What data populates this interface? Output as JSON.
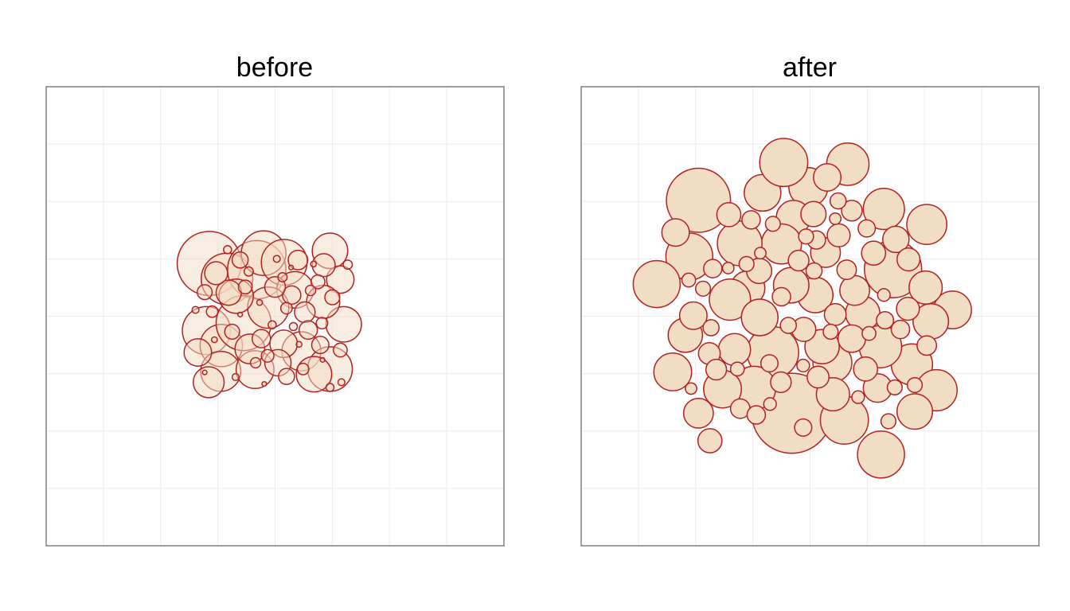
{
  "colors": {
    "circle_fill": "#f1dcc4",
    "circle_stroke": "#b22222",
    "grid": "#ebebeb",
    "frame": "#7f7f7f",
    "background": "#ffffff"
  },
  "chart_data": [
    {
      "type": "scatter",
      "title": "before",
      "xlabel": "",
      "ylabel": "",
      "xlim": [
        -40,
        40
      ],
      "ylim": [
        -40,
        40
      ],
      "grid": true,
      "legend": "none",
      "fill_opacity": 0.5,
      "circles": [
        [
          -11.5,
          9.2,
          5.6
        ],
        [
          -8.4,
          6.5,
          4.5
        ],
        [
          -3.2,
          8.1,
          5.1
        ],
        [
          -2.0,
          11.0,
          3.9
        ],
        [
          1.6,
          9.4,
          4.0
        ],
        [
          3.5,
          4.6,
          3.2
        ],
        [
          9.6,
          11.4,
          3.1
        ],
        [
          11.4,
          6.4,
          2.4
        ],
        [
          8.5,
          8.9,
          2.0
        ],
        [
          -12.0,
          -2.5,
          4.2
        ],
        [
          -9.4,
          -5.1,
          3.7
        ],
        [
          -5.5,
          -1.2,
          4.8
        ],
        [
          -1.2,
          1.5,
          3.6
        ],
        [
          -6.8,
          3.5,
          3.0
        ],
        [
          -9.5,
          -9.6,
          3.5
        ],
        [
          -11.6,
          -11.5,
          2.7
        ],
        [
          -3.5,
          -9.3,
          3.3
        ],
        [
          4.6,
          -6.1,
          3.4
        ],
        [
          9.6,
          -9.2,
          3.9
        ],
        [
          6.8,
          -10.1,
          3.1
        ],
        [
          12.0,
          -1.4,
          3.1
        ],
        [
          8.4,
          2.5,
          2.9
        ],
        [
          -4.4,
          -5.7,
          2.6
        ],
        [
          1.5,
          -4.8,
          2.4
        ],
        [
          -8.1,
          4.1,
          2.2
        ],
        [
          5.2,
          0.7,
          1.8
        ],
        [
          0.5,
          -8.1,
          2.3
        ],
        [
          -13.5,
          -6.3,
          2.4
        ],
        [
          2.9,
          3.7,
          1.6
        ],
        [
          -2.4,
          -3.9,
          1.6
        ],
        [
          7.9,
          -5.0,
          1.5
        ],
        [
          4.0,
          9.8,
          1.7
        ],
        [
          -10.3,
          7.5,
          2.0
        ],
        [
          10.0,
          3.3,
          1.3
        ],
        [
          -6.1,
          9.8,
          1.4
        ],
        [
          5.8,
          -2.4,
          1.6
        ],
        [
          0.0,
          5.1,
          1.8
        ],
        [
          -5.2,
          5.1,
          1.2
        ],
        [
          2.0,
          -10.5,
          1.4
        ],
        [
          -7.5,
          -2.7,
          1.3
        ],
        [
          7.5,
          6.0,
          1.2
        ],
        [
          -1.3,
          -6.9,
          1.1
        ],
        [
          11.4,
          -5.9,
          1.2
        ],
        [
          -12.3,
          4.2,
          1.3
        ],
        [
          4.9,
          -9.2,
          1.0
        ],
        [
          -3.4,
          -8.1,
          0.9
        ],
        [
          8.2,
          -1.2,
          1.0
        ],
        [
          2.0,
          1.4,
          1.0
        ],
        [
          -11.0,
          0.8,
          1.0
        ],
        [
          6.2,
          4.5,
          0.9
        ],
        [
          1.3,
          6.8,
          0.8
        ],
        [
          -4.6,
          7.8,
          0.8
        ],
        [
          12.7,
          9.0,
          0.8
        ],
        [
          3.2,
          -1.8,
          0.7
        ],
        [
          -0.5,
          -1.5,
          0.7
        ],
        [
          9.6,
          -12.4,
          0.7
        ],
        [
          -8.3,
          11.6,
          0.7
        ],
        [
          -6.9,
          -10.6,
          0.6
        ],
        [
          0.3,
          10.0,
          0.6
        ],
        [
          11.6,
          -11.5,
          0.6
        ],
        [
          -13.9,
          1.1,
          0.6
        ],
        [
          6.7,
          9.1,
          0.5
        ],
        [
          -2.7,
          2.4,
          0.5
        ],
        [
          4.2,
          -4.9,
          0.5
        ],
        [
          -10.6,
          -4.1,
          0.5
        ],
        [
          2.8,
          8.5,
          0.4
        ],
        [
          -1.9,
          -11.8,
          0.4
        ],
        [
          8.3,
          -7.6,
          0.4
        ],
        [
          -12.3,
          -9.8,
          0.4
        ],
        [
          -6.1,
          0.3,
          0.4
        ]
      ]
    },
    {
      "type": "scatter",
      "title": "after",
      "xlabel": "",
      "ylabel": "",
      "xlim": [
        -40,
        40
      ],
      "ylim": [
        -40,
        40
      ],
      "grid": true,
      "legend": "none",
      "fill_opacity": 1,
      "circles": [
        [
          -19.5,
          20.2,
          5.6
        ],
        [
          -3.2,
          -16.9,
          7.0
        ],
        [
          12.4,
          -24.1,
          4.1
        ],
        [
          -0.3,
          22.5,
          3.4
        ],
        [
          14.5,
          8.2,
          5.0
        ],
        [
          -6.5,
          -6.3,
          4.5
        ],
        [
          17.8,
          -8.4,
          3.6
        ],
        [
          -21.1,
          10.4,
          4.1
        ],
        [
          -10.9,
          4.9,
          3.0
        ],
        [
          3.9,
          -8.1,
          3.4
        ],
        [
          -9.8,
          -12.5,
          3.8
        ],
        [
          0.9,
          3.7,
          3.1
        ],
        [
          -19.5,
          -16.9,
          2.6
        ],
        [
          -14.0,
          2.9,
          3.6
        ],
        [
          6.0,
          -18.1,
          4.2
        ],
        [
          -2.9,
          17.2,
          3.0
        ],
        [
          22.1,
          -12.9,
          3.6
        ],
        [
          -8.3,
          21.5,
          3.2
        ],
        [
          24.9,
          1.1,
          3.3
        ],
        [
          12.3,
          -5.3,
          3.7
        ],
        [
          6.6,
          26.5,
          3.7
        ],
        [
          20.4,
          16.0,
          3.5
        ],
        [
          -15.3,
          -12.7,
          3.3
        ],
        [
          9.2,
          0.5,
          3.0
        ],
        [
          4.0,
          -13.6,
          2.9
        ],
        [
          -8.8,
          -0.2,
          3.2
        ],
        [
          21.1,
          -0.9,
          3.1
        ],
        [
          -26.8,
          5.6,
          4.1
        ],
        [
          -21.8,
          -3.3,
          3.0
        ],
        [
          -24.0,
          -9.7,
          3.3
        ],
        [
          12.9,
          18.7,
          3.6
        ],
        [
          -5.0,
          12.6,
          3.5
        ],
        [
          -3.3,
          5.4,
          3.1
        ],
        [
          2.1,
          -5.3,
          3.0
        ],
        [
          -4.6,
          26.8,
          4.2
        ],
        [
          -12.3,
          12.7,
          3.9
        ],
        [
          18.3,
          -16.6,
          3.1
        ],
        [
          20.2,
          5.0,
          2.9
        ],
        [
          2.7,
          11.1,
          2.6
        ],
        [
          15.0,
          13.4,
          2.3
        ],
        [
          -8.9,
          7.9,
          2.2
        ],
        [
          11.8,
          -12.5,
          2.5
        ],
        [
          -13.2,
          -5.8,
          2.8
        ],
        [
          -17.6,
          -6.5,
          1.9
        ],
        [
          0.6,
          17.8,
          2.2
        ],
        [
          7.8,
          4.5,
          2.6
        ],
        [
          3.0,
          24.2,
          2.4
        ],
        [
          -14.2,
          17.7,
          2.1
        ],
        [
          7.3,
          -3.9,
          2.4
        ],
        [
          17.1,
          1.3,
          2.0
        ],
        [
          -20.4,
          0.1,
          2.4
        ],
        [
          -17.5,
          -21.7,
          2.1
        ],
        [
          -23.5,
          14.6,
          2.4
        ],
        [
          -12.2,
          -16.1,
          1.7
        ],
        [
          9.7,
          -9.2,
          2.1
        ],
        [
          -5.1,
          -11.5,
          1.8
        ],
        [
          1.4,
          -10.6,
          1.9
        ],
        [
          7.3,
          18.4,
          1.8
        ],
        [
          -1.1,
          -2.3,
          2.1
        ],
        [
          5.0,
          14.1,
          2.0
        ],
        [
          17.2,
          9.9,
          2.0
        ],
        [
          -10.3,
          16.8,
          1.6
        ],
        [
          11.1,
          11.0,
          2.1
        ],
        [
          4.4,
          0.3,
          1.9
        ],
        [
          -2.0,
          9.7,
          1.8
        ],
        [
          -17.0,
          8.3,
          1.6
        ],
        [
          20.4,
          -5.1,
          1.7
        ],
        [
          -7.1,
          -8.2,
          1.5
        ],
        [
          -5.0,
          3.4,
          1.6
        ],
        [
          1.1,
          13.3,
          1.6
        ],
        [
          -16.4,
          -9.3,
          1.8
        ],
        [
          9.9,
          15.3,
          1.5
        ],
        [
          6.4,
          8.1,
          1.7
        ],
        [
          -1.2,
          -19.4,
          1.5
        ],
        [
          13.1,
          -0.7,
          1.5
        ],
        [
          -9.4,
          -17.2,
          1.6
        ],
        [
          -17.3,
          -2.0,
          1.4
        ],
        [
          15.8,
          -2.3,
          1.6
        ],
        [
          -3.8,
          -1.6,
          1.4
        ],
        [
          4.9,
          20.1,
          1.4
        ],
        [
          -6.5,
          16.1,
          1.3
        ],
        [
          -21.2,
          6.3,
          1.2
        ],
        [
          13.7,
          -18.3,
          1.3
        ],
        [
          3.6,
          -2.7,
          1.3
        ],
        [
          0.7,
          7.9,
          1.4
        ],
        [
          -0.7,
          13.9,
          1.3
        ],
        [
          -11.1,
          9.1,
          1.3
        ],
        [
          10.3,
          -3.0,
          1.2
        ],
        [
          -12.7,
          -9.2,
          1.2
        ],
        [
          18.3,
          -12.0,
          1.3
        ],
        [
          14.8,
          -12.4,
          1.3
        ],
        [
          -18.7,
          4.8,
          1.3
        ],
        [
          -7.0,
          -15.3,
          1.1
        ],
        [
          4.4,
          17.0,
          1.0
        ],
        [
          -1.2,
          -8.6,
          1.1
        ],
        [
          8.4,
          -14.1,
          1.1
        ],
        [
          -14.3,
          8.4,
          1.0
        ],
        [
          -20.8,
          -12.6,
          1.0
        ],
        [
          12.9,
          3.7,
          1.1
        ],
        [
          -8.7,
          11.0,
          1.0
        ]
      ]
    }
  ]
}
